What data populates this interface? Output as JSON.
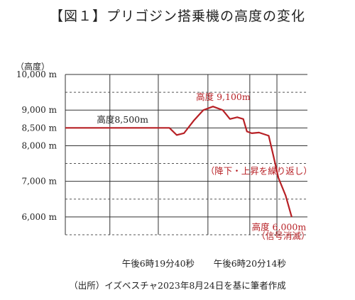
{
  "title": "【図１】プリゴジン搭乗機の高度の変化",
  "source": "（出所）イズベスチャ2023年8月24日を基に筆者作成",
  "chart_data": {
    "type": "line",
    "ylabel": "（高度）",
    "ylim": [
      5500,
      10000
    ],
    "y_ticks": [
      {
        "value": 10000,
        "label": "10,000 m"
      },
      {
        "value": 9000,
        "label": "9,000 m"
      },
      {
        "value": 8500,
        "label": "8,500 m"
      },
      {
        "value": 8000,
        "label": "8,000 m"
      },
      {
        "value": 7000,
        "label": "7,000 m"
      },
      {
        "value": 6000,
        "label": "6,000 m"
      }
    ],
    "dashed_gridlines": [
      9500,
      7500,
      6500,
      5500
    ],
    "x_ticks": [
      {
        "x": 0.384,
        "label": "午後6時19分40秒"
      },
      {
        "x": 0.762,
        "label": "午後6時20分14秒"
      }
    ],
    "x_gridlines": [
      0.184,
      0.384,
      0.589,
      0.762,
      0.874
    ],
    "series": [
      {
        "color": "#b72025",
        "points": [
          [
            0.0,
            8500
          ],
          [
            0.43,
            8500
          ],
          [
            0.46,
            8300
          ],
          [
            0.49,
            8350
          ],
          [
            0.53,
            8700
          ],
          [
            0.57,
            9000
          ],
          [
            0.61,
            9100
          ],
          [
            0.65,
            9000
          ],
          [
            0.68,
            8750
          ],
          [
            0.71,
            8800
          ],
          [
            0.735,
            8750
          ],
          [
            0.75,
            8400
          ],
          [
            0.77,
            8350
          ],
          [
            0.8,
            8370
          ],
          [
            0.84,
            8280
          ],
          [
            0.86,
            7700
          ],
          [
            0.88,
            7100
          ],
          [
            0.91,
            6600
          ],
          [
            0.935,
            6000
          ]
        ]
      }
    ],
    "annotations": [
      {
        "text": "高度8,500m",
        "x": 0.13,
        "y": 8650,
        "color": "#222222"
      },
      {
        "text": "高度 9,100m",
        "x": 0.54,
        "y": 9280,
        "color": "#b72025"
      },
      {
        "text": "（降下・上昇を繰り返し）",
        "x": 0.58,
        "y": 7200,
        "color": "#b72025"
      },
      {
        "text": "高度 6,000m",
        "x": 0.77,
        "y": 5630,
        "color": "#b72025"
      },
      {
        "text": "（信号消滅）",
        "x": 0.79,
        "y": 5380,
        "color": "#b72025"
      }
    ],
    "grid": true
  }
}
